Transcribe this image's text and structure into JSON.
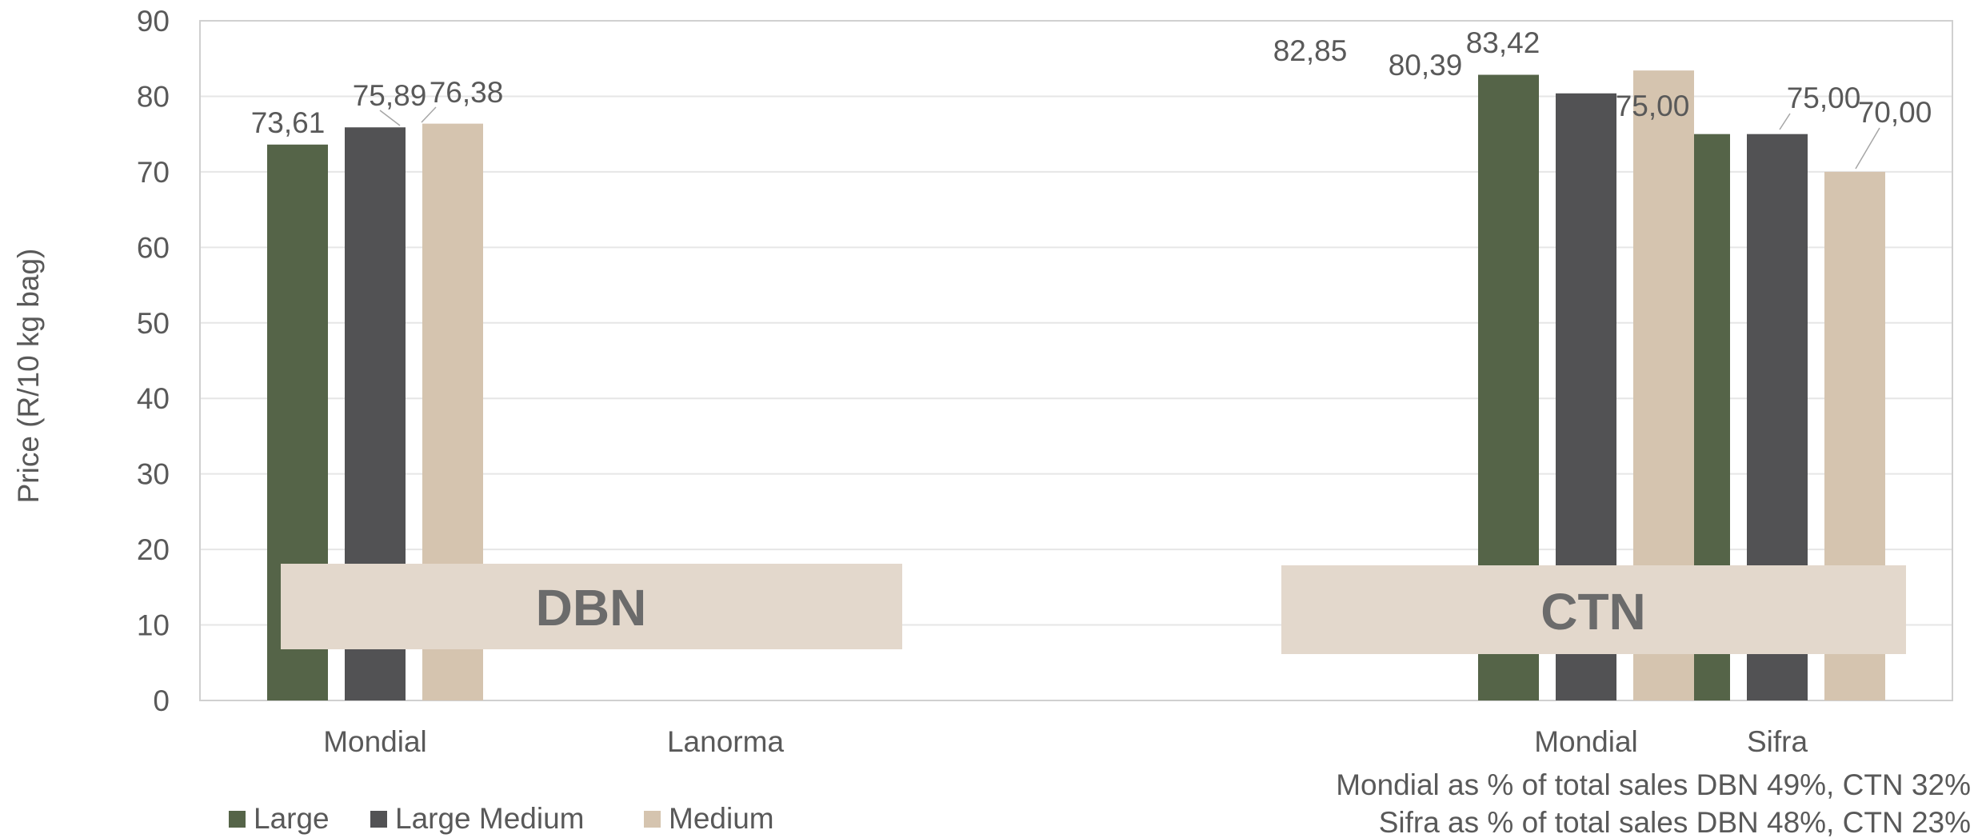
{
  "chart_data": {
    "type": "bar",
    "ylabel": "Price (R/10 kg bag)",
    "ylim": [
      0,
      90
    ],
    "yticks": [
      0,
      10,
      20,
      30,
      40,
      50,
      60,
      70,
      80,
      90
    ],
    "grid": true,
    "legend_position": "bottom-left",
    "categories": [
      "Mondial",
      "Lanorma",
      "",
      "Mondial",
      "Sifra"
    ],
    "series": [
      {
        "name": "Large",
        "color": "#556448",
        "values": [
          73.61,
          null,
          null,
          82.85,
          75.0
        ]
      },
      {
        "name": "Large Medium",
        "color": "#525254",
        "values": [
          75.89,
          null,
          null,
          80.39,
          75.0
        ]
      },
      {
        "name": "Medium",
        "color": "#d5c4af",
        "values": [
          76.38,
          null,
          null,
          83.42,
          70.0
        ]
      }
    ],
    "data_labels": [
      [
        "73,61",
        "",
        "",
        "82,85",
        "75,00"
      ],
      [
        "75,89",
        "",
        "",
        "80,39",
        "75,00"
      ],
      [
        "76,38",
        "",
        "",
        "83,42",
        "70,00"
      ]
    ],
    "regions": [
      {
        "label": "DBN",
        "color": "#e3d8cc"
      },
      {
        "label": "CTN",
        "color": "#e3d8cc"
      }
    ],
    "notes": [
      "Mondial as % of total sales DBN 49%, CTN 32%",
      "Sifra as % of total sales DBN 48%, CTN 23%"
    ]
  }
}
